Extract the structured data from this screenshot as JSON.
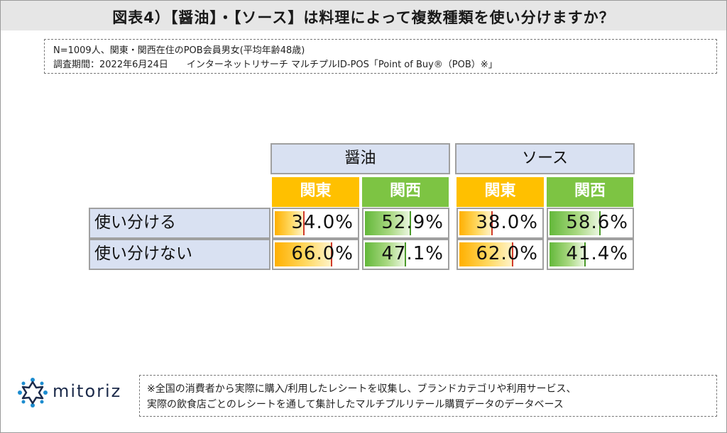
{
  "title": "図表4）【醤油】・【ソース】は料理によって複数種類を使い分けますか？",
  "notes": {
    "line1": "N=1009人、関東・関西在住のPOB会員男女(平均年齢48歳)",
    "line2": "調査期間：2022年6月24日　　インターネットリサーチ マルチプルID-POS「Point of Buy®（POB）※」"
  },
  "chart_data": {
    "type": "table",
    "groups": [
      "醤油",
      "ソース"
    ],
    "regions": [
      "関東",
      "関西"
    ],
    "rows": [
      "使い分ける",
      "使い分けない"
    ],
    "values": {
      "醤油": {
        "関東": [
          34.0,
          66.0
        ],
        "関西": [
          52.9,
          47.1
        ]
      },
      "ソース": {
        "関東": [
          38.0,
          62.0
        ],
        "関西": [
          58.6,
          41.4
        ]
      }
    },
    "labels": {
      "醤油": {
        "関東": [
          "34.0%",
          "66.0%"
        ],
        "関西": [
          "52.9%",
          "47.1%"
        ]
      },
      "ソース": {
        "関東": [
          "38.0%",
          "62.0%"
        ],
        "関西": [
          "58.6%",
          "41.4%"
        ]
      }
    },
    "colors": {
      "関東": "#ffc000",
      "関西": "#7dc443",
      "header": "#d9e1f2"
    }
  },
  "footer": {
    "line1": "※全国の消費者から実際に購入/利用したレシートを収集し、ブランドカテゴリや利用サービス、",
    "line2": "実際の飲食店ごとのレシートを通して集計したマルチプルリテール購買データのデータベース"
  },
  "logo": {
    "text": "mitoriz",
    "icon": "mitoriz-logo-icon"
  }
}
